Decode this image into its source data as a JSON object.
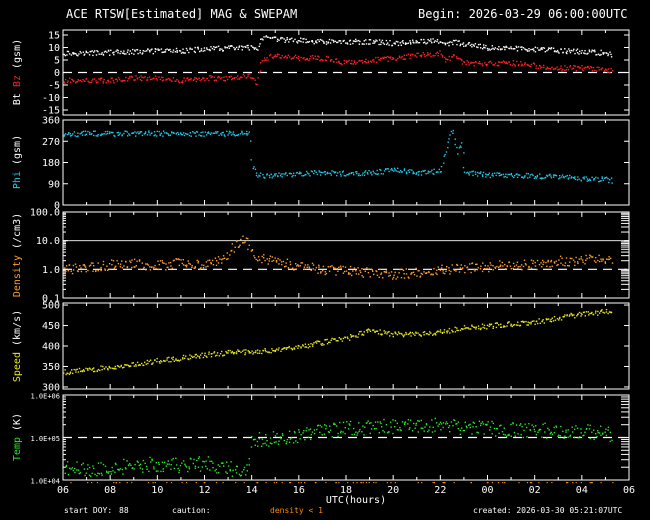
{
  "header": {
    "title": "ACE RTSW[Estimated] MAG & SWEPAM",
    "begin": "Begin: 2026-03-29 06:00:00UTC"
  },
  "footer": {
    "start_doy_label": "start DOY:",
    "start_doy": "88",
    "caution_label": "caution:",
    "caution_text": "density < 1",
    "created": "created: 2026-03-30 05:21:07UTC"
  },
  "colors": {
    "background": "#000000",
    "axes": "#ffffff",
    "bt": "#ffffff",
    "bz": "#ff2020",
    "phi": "#20c8e6",
    "density": "#ff9e30",
    "speed": "#e6e61e",
    "temp": "#28e628",
    "caution": "#ff8c00"
  },
  "chart_data": [
    {
      "type": "scatter",
      "panel": "mag",
      "ylabel_parts": [
        "Bt",
        "Bz",
        "(gsm)"
      ],
      "yticks": [
        "-15",
        "-10",
        "-5",
        "0",
        "5",
        "10",
        "15"
      ],
      "ylim": [
        -17,
        17
      ],
      "scale": "linear",
      "reference_line": 0,
      "series": [
        {
          "name": "Bt",
          "color_key": "bt",
          "x": [
            0,
            1,
            2,
            3,
            4,
            5,
            6,
            7,
            8,
            8.2,
            8.4,
            8.6,
            9,
            10,
            11,
            12,
            13,
            14,
            15,
            16,
            16.2,
            16.6,
            17,
            18,
            19,
            20,
            21,
            22,
            23,
            23.3
          ],
          "y": [
            8,
            8,
            8.2,
            8.5,
            8.8,
            9,
            9.5,
            10,
            10.2,
            9,
            13,
            14,
            13.5,
            13,
            12.5,
            12.5,
            12.5,
            12,
            12.5,
            13,
            11,
            12.5,
            11.5,
            10,
            10,
            9.5,
            9,
            8.5,
            8,
            7.5
          ]
        },
        {
          "name": "Bz",
          "color_key": "bz",
          "x": [
            0,
            1,
            2,
            3,
            4,
            5,
            6,
            7,
            8,
            8.2,
            8.4,
            8.6,
            9,
            10,
            11,
            12,
            13,
            14,
            15,
            16,
            16.2,
            16.6,
            17,
            18,
            19,
            20,
            21,
            22,
            23,
            23.3
          ],
          "y": [
            -3,
            -3,
            -3,
            -2,
            -2,
            -3,
            -2,
            -2,
            -1,
            -5,
            5,
            6,
            7,
            6,
            6,
            4,
            5,
            6,
            7,
            8,
            5,
            7,
            4,
            4,
            4,
            3,
            2,
            2,
            1,
            1
          ]
        }
      ]
    },
    {
      "type": "scatter",
      "panel": "phi",
      "ylabel_parts": [
        "Phi",
        "(gsm)"
      ],
      "yticks": [
        "0",
        "90",
        "180",
        "270",
        "360"
      ],
      "ylim": [
        0,
        360
      ],
      "scale": "linear",
      "series": [
        {
          "name": "Phi",
          "color_key": "phi",
          "x": [
            0,
            1,
            2,
            3,
            4,
            5,
            6,
            7,
            7.9,
            8.0,
            8.2,
            8.5,
            9,
            10,
            11,
            12,
            13,
            14,
            15,
            16,
            16.2,
            16.5,
            16.7,
            16.9,
            17,
            18,
            19,
            20,
            21,
            22,
            23,
            23.3
          ],
          "y": [
            300,
            305,
            305,
            305,
            305,
            305,
            305,
            305,
            305,
            170,
            130,
            125,
            130,
            135,
            140,
            135,
            140,
            150,
            140,
            145,
            230,
            320,
            220,
            270,
            140,
            130,
            130,
            125,
            120,
            115,
            110,
            105
          ]
        }
      ]
    },
    {
      "type": "scatter",
      "panel": "density",
      "ylabel_parts": [
        "Density",
        "(/cm3)"
      ],
      "yticks": [
        "0.1",
        "1.0",
        "10.0",
        "100.0"
      ],
      "ylim": [
        0.1,
        100
      ],
      "scale": "log",
      "reference_line": 1,
      "series": [
        {
          "name": "Density",
          "color_key": "density",
          "x": [
            0,
            1,
            2,
            3,
            4,
            5,
            6,
            7,
            7.6,
            8,
            8.2,
            8.5,
            9,
            10,
            11,
            12,
            13,
            14,
            15,
            16,
            17,
            18,
            19,
            20,
            21,
            22,
            23,
            23.3
          ],
          "y": [
            1,
            1.2,
            1.5,
            1.6,
            1.4,
            1.8,
            1.5,
            3,
            12,
            5,
            3,
            2.5,
            2,
            1.3,
            1,
            0.9,
            0.8,
            0.7,
            0.8,
            1,
            1.2,
            1.3,
            1.5,
            1.5,
            2,
            2.2,
            2.5,
            2.5
          ]
        }
      ]
    },
    {
      "type": "scatter",
      "panel": "speed",
      "ylabel_parts": [
        "Speed",
        "(km/s)"
      ],
      "yticks": [
        "300",
        "350",
        "400",
        "450",
        "500"
      ],
      "ylim": [
        295,
        505
      ],
      "scale": "linear",
      "series": [
        {
          "name": "Speed",
          "color_key": "speed",
          "x": [
            0,
            1,
            2,
            3,
            4,
            5,
            6,
            7,
            8,
            9,
            10,
            11,
            12,
            13,
            14,
            15,
            16,
            17,
            18,
            19,
            20,
            21,
            22,
            23,
            23.3
          ],
          "y": [
            338,
            342,
            350,
            357,
            365,
            372,
            380,
            385,
            388,
            392,
            400,
            410,
            420,
            440,
            430,
            430,
            435,
            445,
            450,
            455,
            460,
            470,
            480,
            485,
            490
          ]
        }
      ]
    },
    {
      "type": "scatter",
      "panel": "temp",
      "ylabel_parts": [
        "Temp",
        "(K)"
      ],
      "yticks": [
        "1.0E+04",
        "1.0E+05",
        "1.0E+06"
      ],
      "ylim": [
        10000,
        1000000
      ],
      "scale": "log",
      "reference_line": 100000,
      "series": [
        {
          "name": "Temp",
          "color_key": "temp",
          "x": [
            0,
            1,
            2,
            3,
            4,
            5,
            6,
            7,
            7.5,
            7.8,
            8,
            9,
            10,
            11,
            12,
            13,
            14,
            15,
            16,
            17,
            18,
            19,
            20,
            21,
            22,
            23,
            23.3
          ],
          "y": [
            20000,
            18000,
            20000,
            22000,
            25000,
            22000,
            25000,
            20000,
            15000,
            18000,
            90000,
            100000,
            120000,
            150000,
            170000,
            180000,
            190000,
            200000,
            200000,
            180000,
            170000,
            160000,
            150000,
            150000,
            140000,
            130000,
            120000
          ]
        }
      ]
    }
  ],
  "x_axis": {
    "label": "UTC(hours)",
    "ticks": [
      "06",
      "08",
      "10",
      "12",
      "14",
      "16",
      "18",
      "20",
      "22",
      "00",
      "02",
      "04",
      "06"
    ]
  }
}
